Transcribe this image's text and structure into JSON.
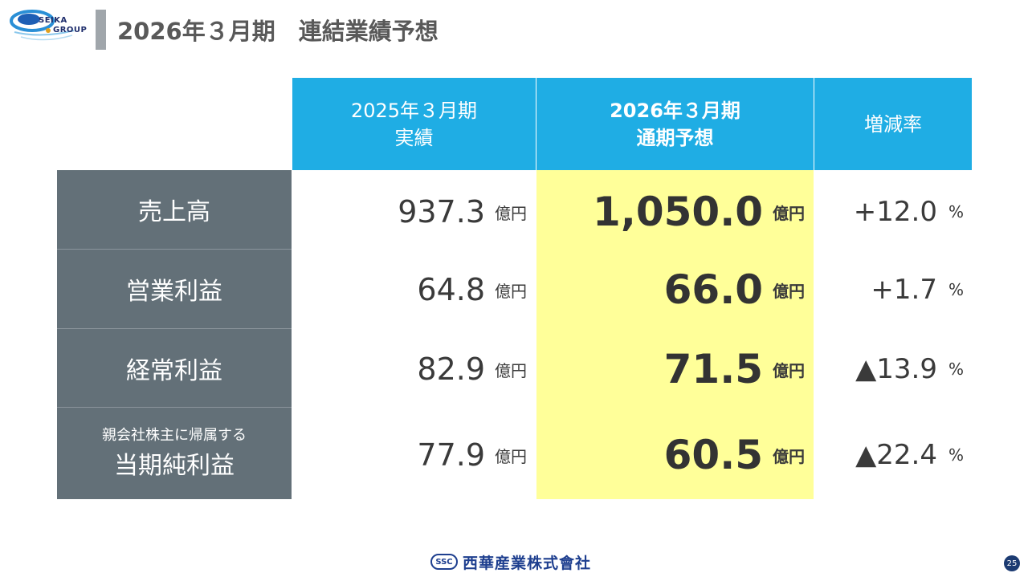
{
  "logo": {
    "line1": "SEIKA",
    "line2": "GROUP"
  },
  "title": "2026年３月期　連結業績予想",
  "table": {
    "headers": {
      "prior": [
        "2025年３月期",
        "実績"
      ],
      "forecast": [
        "2026年３月期",
        "通期予想"
      ],
      "change": "増減率"
    },
    "rows": [
      {
        "label": "売上高",
        "sublabel": "",
        "prior": "937.3",
        "forecast": "1,050.0",
        "change": "+12.0"
      },
      {
        "label": "営業利益",
        "sublabel": "",
        "prior": "64.8",
        "forecast": "66.0",
        "change": "+1.7"
      },
      {
        "label": "経常利益",
        "sublabel": "",
        "prior": "82.9",
        "forecast": "71.5",
        "change": "▲13.9"
      },
      {
        "label": "当期純利益",
        "sublabel": "親会社株主に帰属する",
        "prior": "77.9",
        "forecast": "60.5",
        "change": "▲22.4"
      }
    ],
    "unit": "億円",
    "percent": "%"
  },
  "footer": {
    "badge": "SSC",
    "company": "西華産業株式會社"
  },
  "page_number": "25",
  "colors": {
    "header_bg": "#1fade4",
    "label_bg": "#637078",
    "highlight_bg": "#ffff99",
    "brand_navy": "#1e3f8f"
  }
}
